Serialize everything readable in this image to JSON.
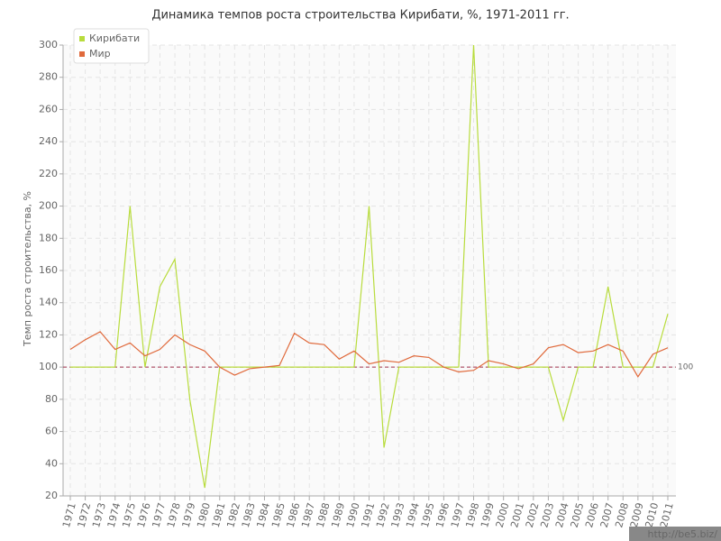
{
  "chart_data": {
    "type": "line",
    "title": "Динамика темпов роста строительства Кирибати, %, 1971-2011 гг.",
    "y_label": "Темп роста строительства, %",
    "watermark": "http://be5.biz/",
    "categories": [
      "1971",
      "1972",
      "1973",
      "1974",
      "1975",
      "1976",
      "1977",
      "1978",
      "1979",
      "1980",
      "1981",
      "1982",
      "1983",
      "1984",
      "1985",
      "1986",
      "1987",
      "1988",
      "1989",
      "1990",
      "1991",
      "1992",
      "1993",
      "1994",
      "1995",
      "1996",
      "1997",
      "1998",
      "1999",
      "2000",
      "2001",
      "2002",
      "2003",
      "2004",
      "2005",
      "2006",
      "2007",
      "2008",
      "2009",
      "2010",
      "2011"
    ],
    "series": [
      {
        "name": "Кирибати",
        "color": "#b8dc3c",
        "values": [
          100,
          100,
          100,
          100,
          200,
          100,
          150,
          167,
          80,
          25,
          100,
          100,
          100,
          100,
          100,
          100,
          100,
          100,
          100,
          100,
          200,
          50,
          100,
          100,
          100,
          100,
          100,
          300,
          100,
          100,
          100,
          100,
          100,
          67,
          100,
          100,
          150,
          100,
          100,
          100,
          133
        ]
      },
      {
        "name": "Мир",
        "color": "#e06a3c",
        "values": [
          111,
          117,
          122,
          111,
          115,
          107,
          111,
          120,
          114,
          110,
          100,
          95,
          99,
          100,
          101,
          121,
          115,
          114,
          105,
          110,
          102,
          104,
          103,
          107,
          106,
          100,
          97,
          98,
          104,
          102,
          99,
          102,
          112,
          114,
          109,
          110,
          114,
          110,
          94,
          108,
          112
        ]
      }
    ],
    "reference_line": 100,
    "reference_color": "#a0304a",
    "ylim": [
      20,
      300
    ],
    "yticks": [
      20,
      40,
      60,
      80,
      100,
      120,
      140,
      160,
      180,
      200,
      220,
      240,
      260,
      280,
      300
    ],
    "grid": true,
    "legend": "top-left"
  }
}
